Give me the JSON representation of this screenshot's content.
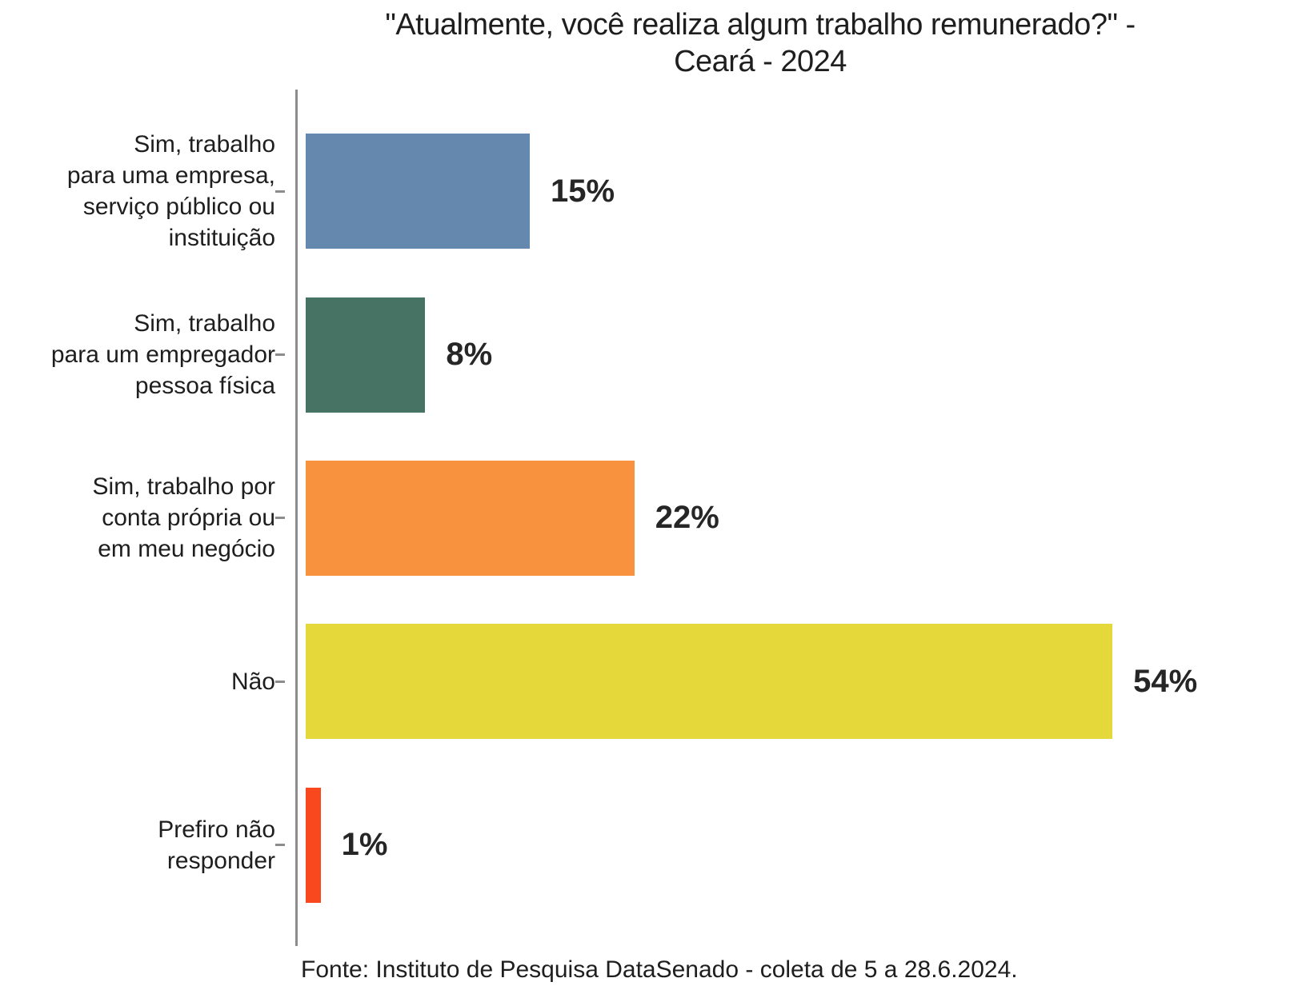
{
  "figure": {
    "title": "\"Atualmente, você realiza algum trabalho remunerado?\" -\nCeará - 2024",
    "source": "Fonte: Instituto de Pesquisa DataSenado - coleta de 5 a 28.6.2024."
  },
  "chart_data": {
    "type": "bar",
    "orientation": "horizontal",
    "title": "\"Atualmente, você realiza algum trabalho remunerado?\" - Ceará - 2024",
    "categories": [
      "Sim, trabalho\npara uma empresa,\nserviço público ou\ninstituição",
      "Sim, trabalho\npara um empregador\npessoa física",
      "Sim, trabalho por\nconta própria ou\nem meu negócio",
      "Não",
      "Prefiro não\nresponder"
    ],
    "values": [
      15,
      8,
      22,
      54,
      1
    ],
    "value_labels": [
      "15%",
      "8%",
      "22%",
      "54%",
      "1%"
    ],
    "bar_colors": [
      "#6588AF",
      "#467363",
      "#F8923E",
      "#E4D83B",
      "#F9481E"
    ],
    "xlim": [
      0,
      60
    ],
    "xlabel": "",
    "ylabel": "",
    "grid": false,
    "legend": "none",
    "value_label_position": "right-of-bar",
    "axis_color": "#8C8C8C",
    "text_color": "#1E1E1E",
    "source": "Fonte: Instituto de Pesquisa DataSenado - coleta de 5 a 28.6.2024."
  }
}
